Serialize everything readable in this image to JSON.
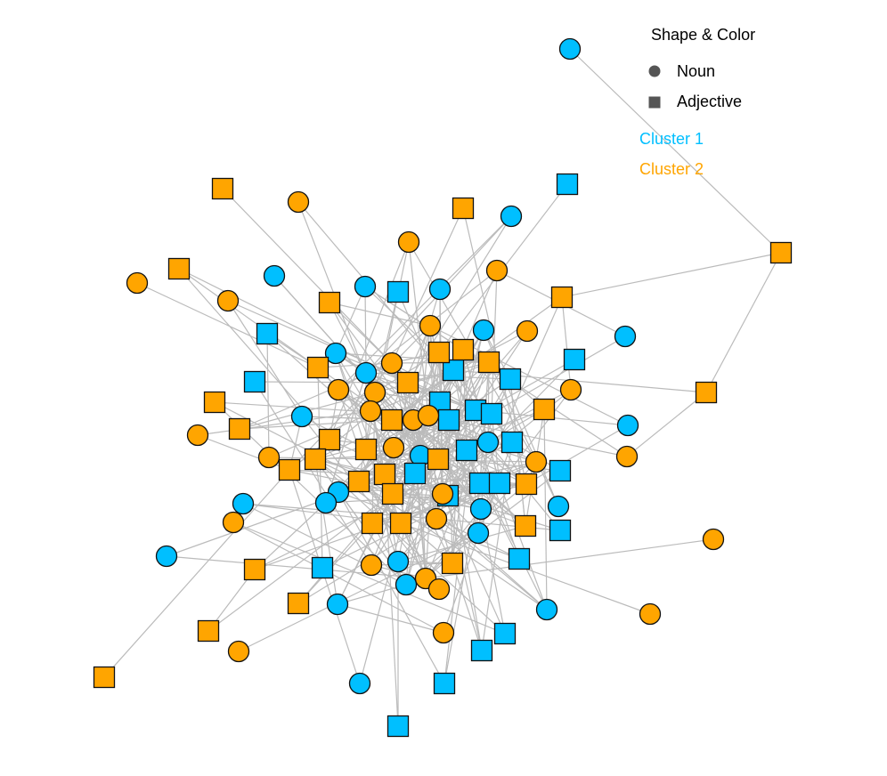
{
  "legend": {
    "title": "Shape & Color",
    "shapes": [
      {
        "label": "Noun"
      },
      {
        "label": "Adjective"
      }
    ],
    "clusters": [
      {
        "label": "Cluster 1",
        "color": "#00bfff"
      },
      {
        "label": "Cluster 2",
        "color": "#ffa500"
      }
    ]
  }
}
